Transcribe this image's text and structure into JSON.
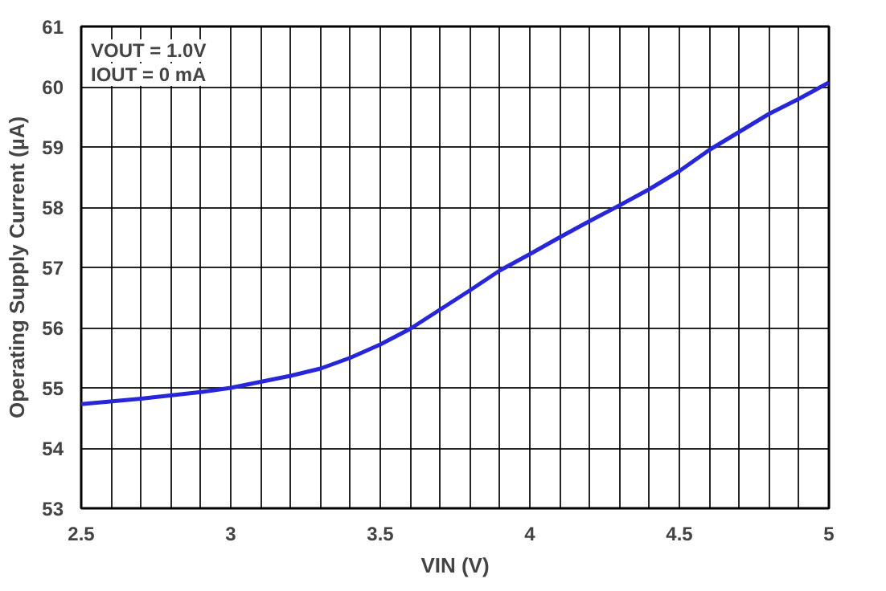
{
  "chart_data": {
    "type": "line",
    "xlabel": "VIN (V)",
    "ylabel": "Operating Supply Current (µA)",
    "annotations": [
      "VOUT = 1.0V",
      "IOUT = 0 mA"
    ],
    "x": [
      2.5,
      2.7,
      2.9,
      3.0,
      3.2,
      3.3,
      3.4,
      3.5,
      3.6,
      3.7,
      3.8,
      3.9,
      4.0,
      4.1,
      4.2,
      4.3,
      4.4,
      4.5,
      4.6,
      4.7,
      4.8,
      4.9,
      5.0
    ],
    "series": [
      {
        "color": "#2727d9",
        "values": [
          54.73,
          54.82,
          54.93,
          55.0,
          55.2,
          55.32,
          55.5,
          55.72,
          55.98,
          56.3,
          56.62,
          56.95,
          57.22,
          57.5,
          57.77,
          58.03,
          58.3,
          58.6,
          58.95,
          59.25,
          59.55,
          59.8,
          60.07
        ]
      }
    ],
    "xlim": [
      2.5,
      5.0
    ],
    "xticks": [
      2.5,
      {
        "value": 2.6,
        "label": null
      },
      {
        "value": 2.7,
        "label": null
      },
      {
        "value": 2.8,
        "label": null
      },
      {
        "value": 2.9,
        "label": null
      },
      3,
      {
        "value": 3.1,
        "label": null
      },
      {
        "value": 3.2,
        "label": null
      },
      {
        "value": 3.3,
        "label": null
      },
      {
        "value": 3.4,
        "label": null
      },
      3.5,
      {
        "value": 3.6,
        "label": null
      },
      {
        "value": 3.7,
        "label": null
      },
      {
        "value": 3.8,
        "label": null
      },
      {
        "value": 3.9,
        "label": null
      },
      4,
      {
        "value": 4.1,
        "label": null
      },
      {
        "value": 4.2,
        "label": null
      },
      {
        "value": 4.3,
        "label": null
      },
      {
        "value": 4.4,
        "label": null
      },
      4.5,
      {
        "value": 4.6,
        "label": null
      },
      {
        "value": 4.7,
        "label": null
      },
      {
        "value": 4.8,
        "label": null
      },
      {
        "value": 4.9,
        "label": null
      },
      5
    ],
    "ylim": [
      53,
      61
    ],
    "yticks": [
      53,
      54,
      55,
      56,
      57,
      58,
      59,
      60,
      61
    ],
    "grid": true,
    "marker": "none",
    "line_style": "solid"
  }
}
